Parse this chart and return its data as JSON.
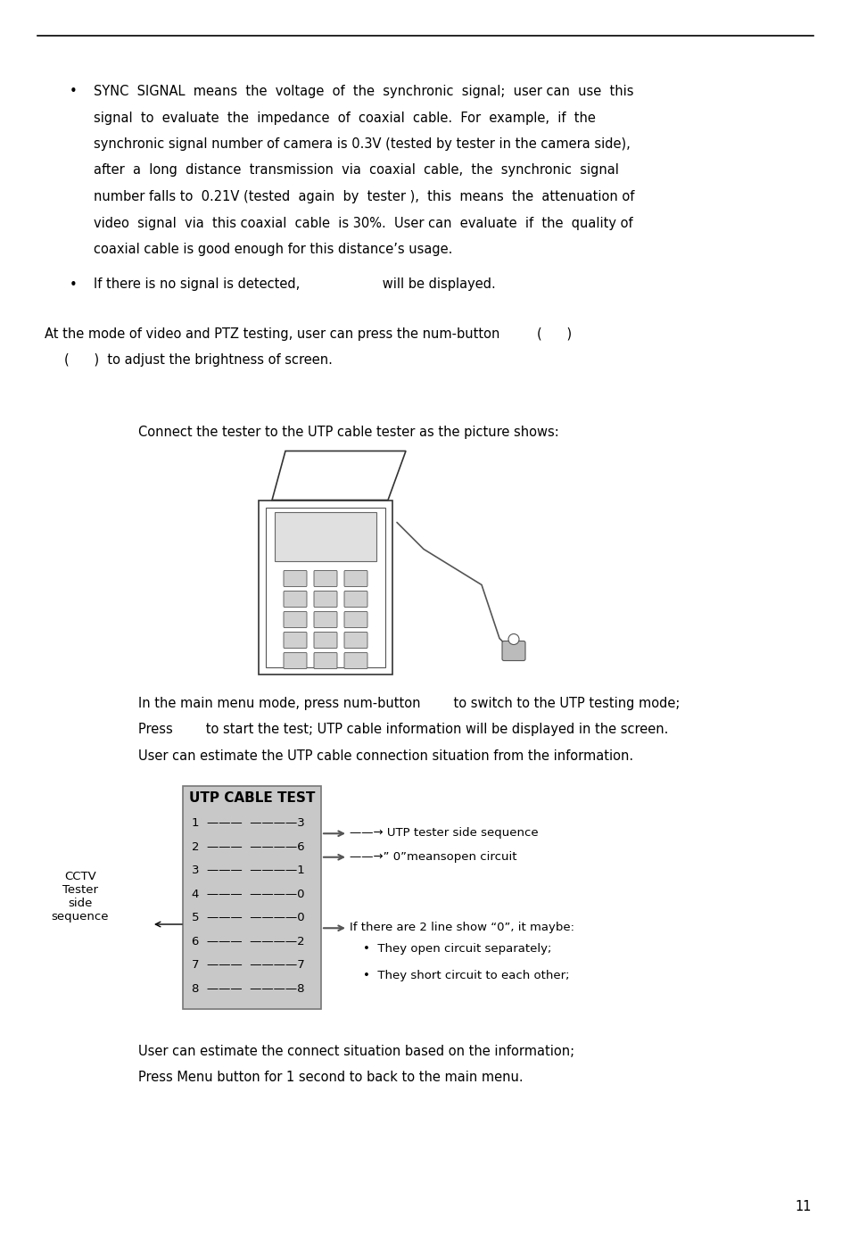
{
  "bg_color": "#ffffff",
  "page_width": 9.54,
  "page_height": 13.82,
  "bullet1_lines": [
    "SYNC  SIGNAL  means  the  voltage  of  the  synchronic  signal;  user can  use  this",
    "signal  to  evaluate  the  impedance  of  coaxial  cable.  For  example,  if  the",
    "synchronic signal number of camera is 0.3V (tested by tester in the camera side),",
    "after  a  long  distance  transmission  via  coaxial  cable,  the  synchronic  signal",
    "number falls to  0.21V (tested  again  by  tester ),  this  means  the  attenuation of",
    "video  signal  via  this coaxial  cable  is 30%.  User can  evaluate  if  the  quality of",
    "coaxial cable is good enough for this distance’s usage."
  ],
  "bullet2_line": "If there is no signal is detected,                    will be displayed.",
  "para1_line1": "At the mode of video and PTZ testing, user can press the num-button         (      )",
  "para1_line2": "(      )  to adjust the brightness of screen.",
  "connect_text": "Connect the tester to the UTP cable tester as the picture shows:",
  "menu_line1": "In the main menu mode, press num-button        to switch to the UTP testing mode;",
  "menu_line2": "Press        to start the test; UTP cable information will be displayed in the screen.",
  "menu_line3": "User can estimate the UTP cable connection situation from the information.",
  "utp_table_title": "UTP CABLE TEST",
  "utp_rows": [
    "1  ———  ————3",
    "2  ———  ————6",
    "3  ———  ————1",
    "4  ———  ————0",
    "5  ———  ————0",
    "6  ———  ————2",
    "7  ———  ————7",
    "8  ———  ————8"
  ],
  "cctv_label": "CCTV\nTester\nside\nsequence",
  "arrow1_text": "——→ UTP tester side sequence",
  "arrow2_text": "——→” 0”meansopen circuit",
  "if_text": "If there are 2 line show “0”, it maybe:",
  "bullet_sub1": "They open circuit separately;",
  "bullet_sub2": "They short circuit to each other;",
  "footer_line1": "User can estimate the connect situation based on the information;",
  "footer_line2": "Press Menu button for 1 second to back to the main menu.",
  "page_num": "11",
  "font_size_body": 10.5,
  "font_size_small": 9.5
}
